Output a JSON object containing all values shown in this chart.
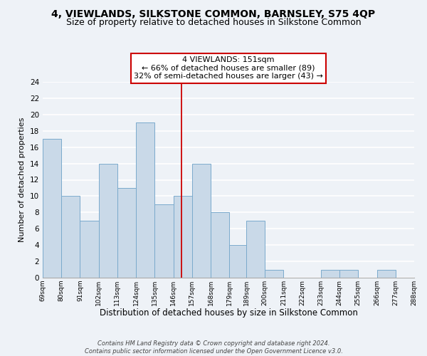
{
  "title": "4, VIEWLANDS, SILKSTONE COMMON, BARNSLEY, S75 4QP",
  "subtitle": "Size of property relative to detached houses in Silkstone Common",
  "xlabel": "Distribution of detached houses by size in Silkstone Common",
  "ylabel": "Number of detached properties",
  "bar_edges": [
    69,
    80,
    91,
    102,
    113,
    124,
    135,
    146,
    157,
    168,
    179,
    189,
    200,
    211,
    222,
    233,
    244,
    255,
    266,
    277,
    288
  ],
  "bar_heights": [
    17,
    10,
    7,
    14,
    11,
    19,
    9,
    10,
    14,
    8,
    4,
    7,
    1,
    0,
    0,
    1,
    1,
    0,
    1,
    0
  ],
  "bar_color": "#c9d9e8",
  "bar_edge_color": "#7aaacc",
  "vline_x": 151,
  "vline_color": "#cc0000",
  "ylim": [
    0,
    24
  ],
  "yticks": [
    0,
    2,
    4,
    6,
    8,
    10,
    12,
    14,
    16,
    18,
    20,
    22,
    24
  ],
  "annotation_title": "4 VIEWLANDS: 151sqm",
  "annotation_line1": "← 66% of detached houses are smaller (89)",
  "annotation_line2": "32% of semi-detached houses are larger (43) →",
  "annotation_box_color": "#ffffff",
  "annotation_box_edge": "#cc0000",
  "footer1": "Contains HM Land Registry data © Crown copyright and database right 2024.",
  "footer2": "Contains public sector information licensed under the Open Government Licence v3.0.",
  "background_color": "#eef2f7",
  "grid_color": "#ffffff",
  "title_fontsize": 10,
  "subtitle_fontsize": 9
}
